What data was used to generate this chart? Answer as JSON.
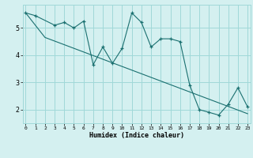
{
  "xlabel": "Humidex (Indice chaleur)",
  "bg_color": "#d4f0f0",
  "grid_color": "#a0d8d8",
  "line_color": "#1a7070",
  "x_ticks": [
    0,
    1,
    2,
    3,
    4,
    5,
    6,
    7,
    8,
    9,
    10,
    11,
    12,
    13,
    14,
    15,
    16,
    17,
    18,
    19,
    20,
    21,
    22,
    23
  ],
  "y_ticks": [
    2,
    3,
    4,
    5
  ],
  "ylim": [
    1.5,
    5.85
  ],
  "xlim": [
    -0.3,
    23.3
  ],
  "line1_x": [
    0,
    1,
    3,
    4,
    5,
    6,
    7,
    8,
    9,
    10,
    11,
    12,
    13,
    14,
    15,
    16,
    17,
    18,
    19,
    20,
    21,
    22,
    23
  ],
  "line1_y": [
    5.55,
    5.45,
    5.1,
    5.2,
    5.0,
    5.25,
    3.65,
    4.3,
    3.7,
    4.25,
    5.55,
    5.2,
    4.3,
    4.6,
    4.6,
    4.5,
    2.9,
    2.0,
    1.9,
    1.8,
    2.2,
    2.8,
    2.1
  ],
  "line2_x": [
    0,
    2,
    23
  ],
  "line2_y": [
    5.55,
    4.65,
    1.85
  ]
}
